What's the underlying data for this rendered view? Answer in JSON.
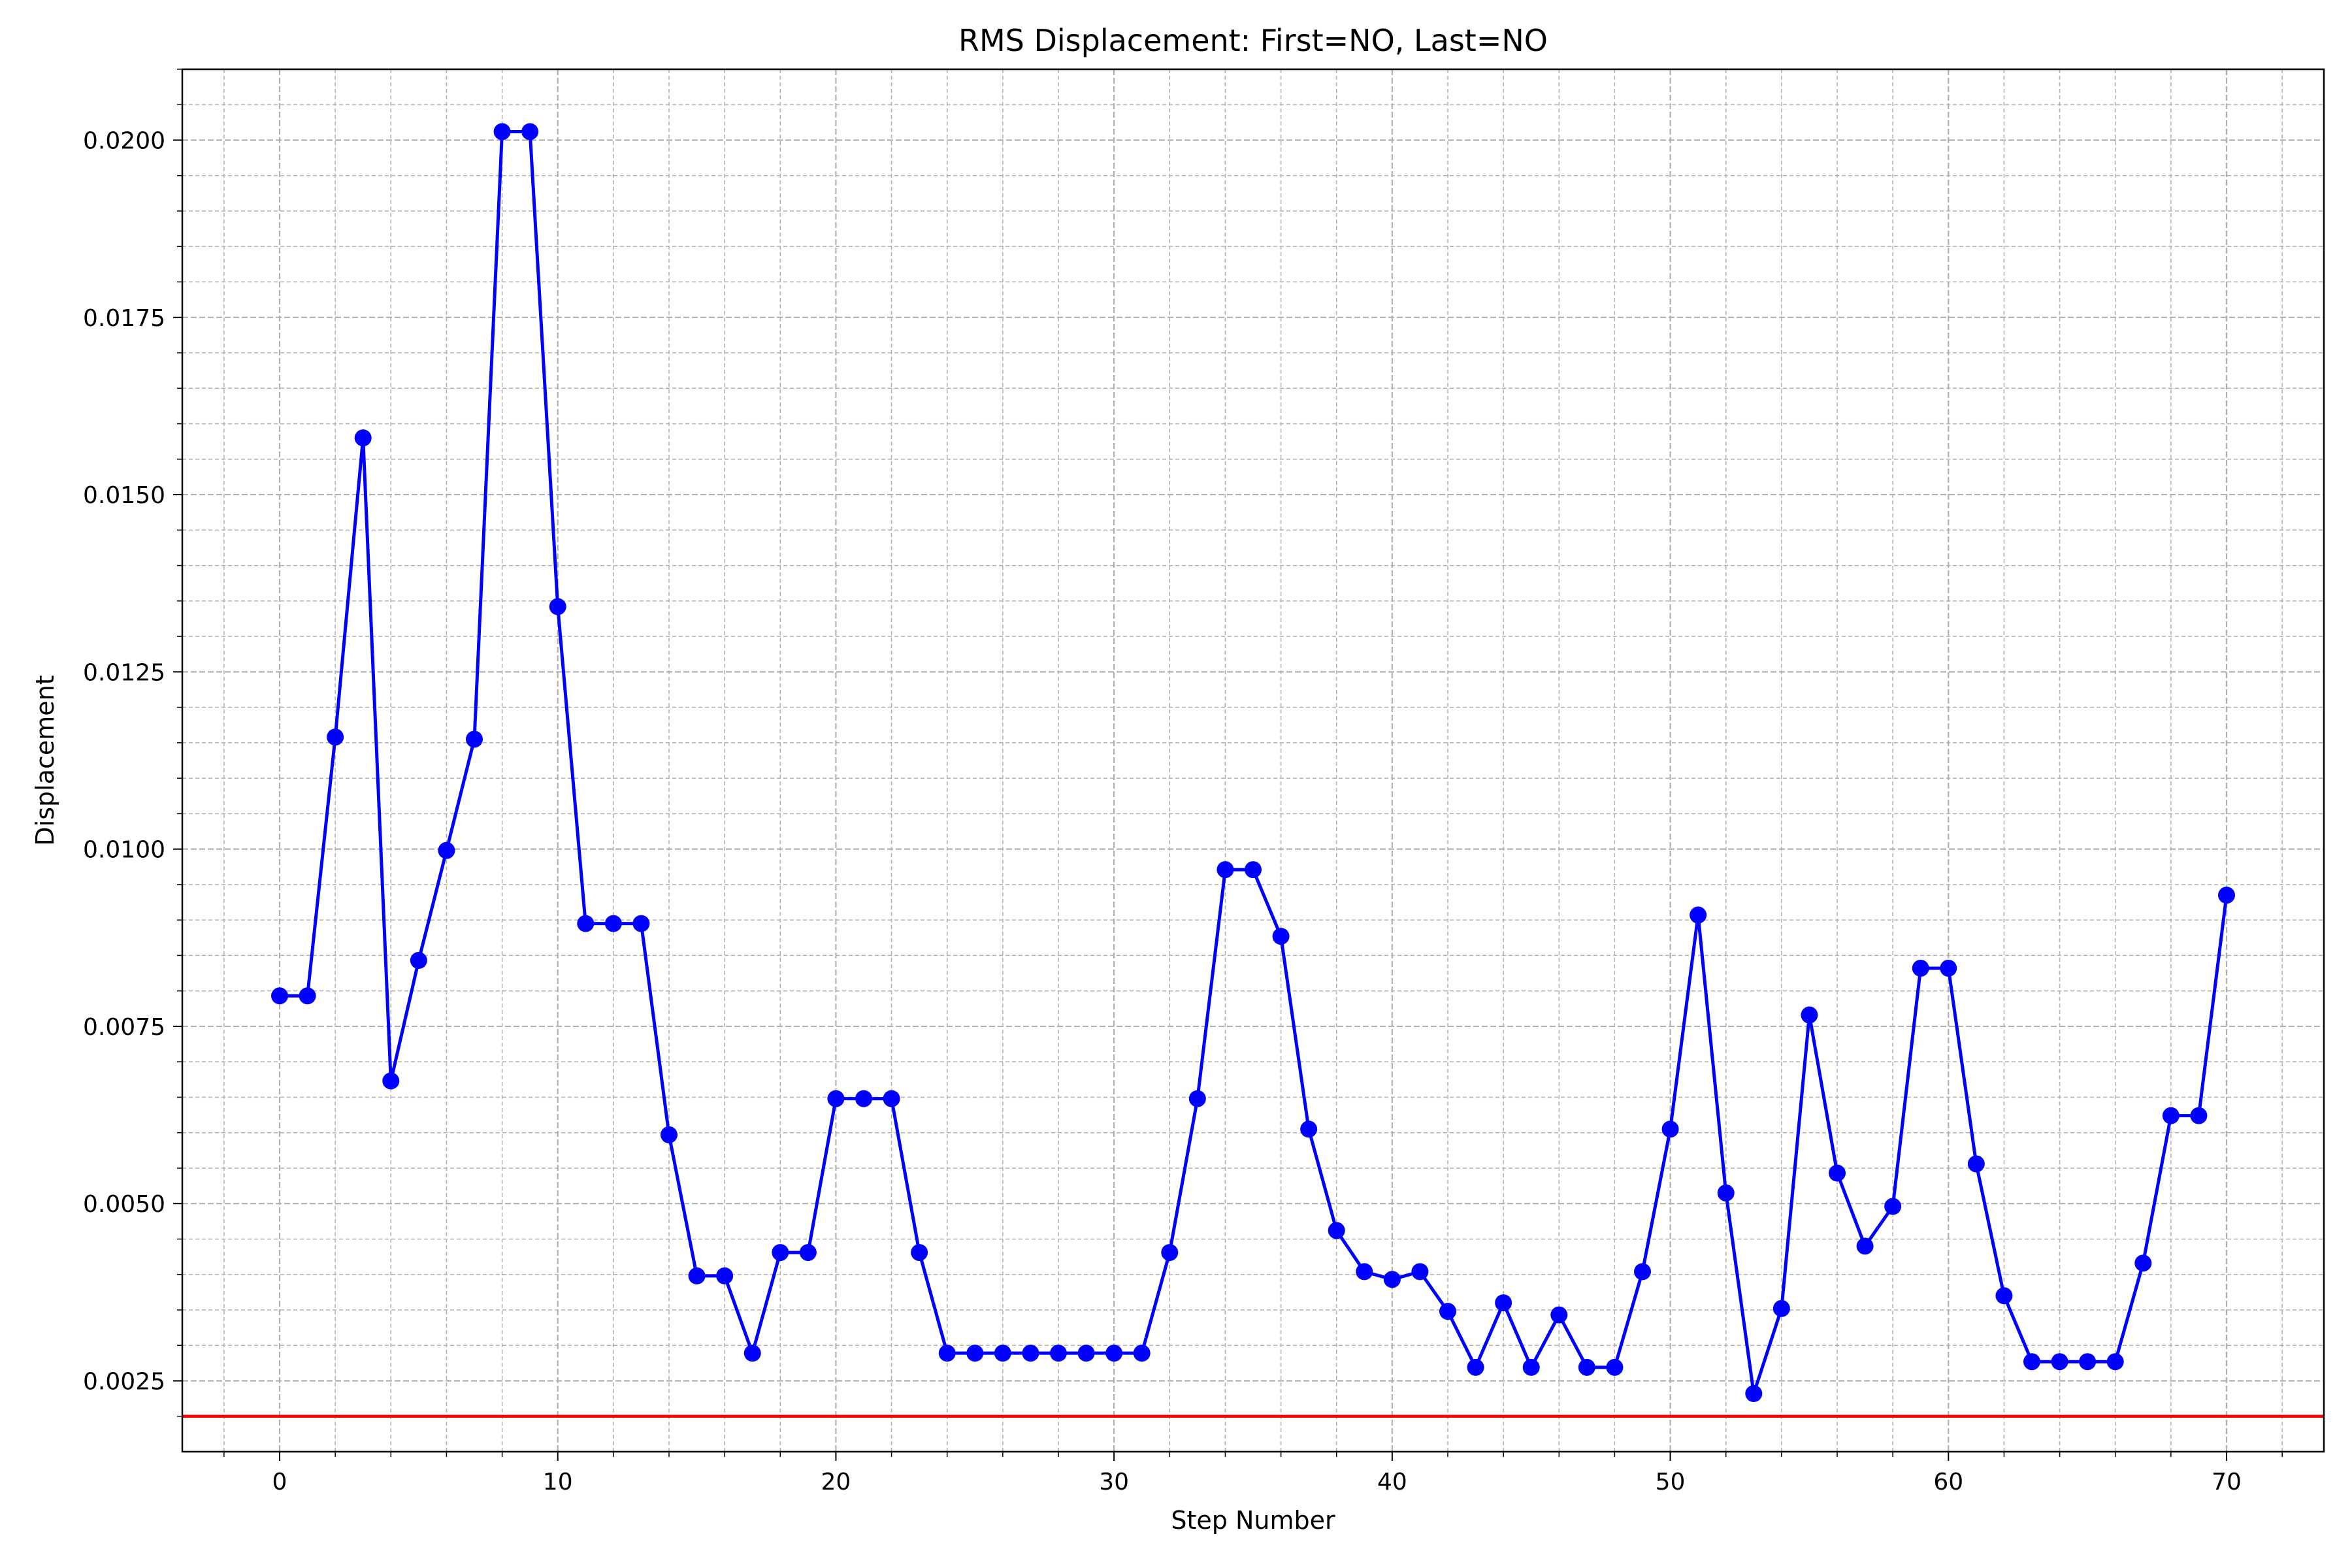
{
  "chart_data": {
    "type": "line",
    "title": "RMS Displacement: First=NO, Last=NO",
    "xlabel": "Step Number",
    "ylabel": "Displacement",
    "xlim": [
      -3.5,
      73.5
    ],
    "ylim": [
      0.0015,
      0.021
    ],
    "xticks": [
      0,
      10,
      20,
      30,
      40,
      50,
      60,
      70
    ],
    "xtick_labels": [
      "0",
      "10",
      "20",
      "30",
      "40",
      "50",
      "60",
      "70"
    ],
    "yticks": [
      0.0025,
      0.005,
      0.0075,
      0.01,
      0.0125,
      0.015,
      0.0175,
      0.02
    ],
    "ytick_labels": [
      "0.0025",
      "0.0050",
      "0.0075",
      "0.0100",
      "0.0125",
      "0.0150",
      "0.0175",
      "0.0200"
    ],
    "grid": "on (major and minor, dashed)",
    "series": [
      {
        "color": "#0000ff",
        "marker": "circle",
        "x": [
          0,
          1,
          2,
          3,
          4,
          5,
          6,
          7,
          8,
          9,
          10,
          11,
          12,
          13,
          14,
          15,
          16,
          17,
          18,
          19,
          20,
          21,
          22,
          23,
          24,
          25,
          26,
          27,
          28,
          29,
          30,
          31,
          32,
          33,
          34,
          35,
          36,
          37,
          38,
          39,
          40,
          41,
          42,
          43,
          44,
          45,
          46,
          47,
          48,
          49,
          50,
          51,
          52,
          53,
          54,
          55,
          56,
          57,
          58,
          59,
          60,
          61,
          62,
          63,
          64,
          65,
          66,
          67,
          68,
          69,
          70
        ],
        "values": [
          0.00793,
          0.00793,
          0.01158,
          0.0158,
          0.00673,
          0.00843,
          0.00998,
          0.01155,
          0.02012,
          0.02012,
          0.01342,
          0.00895,
          0.00895,
          0.00895,
          0.00597,
          0.00398,
          0.00398,
          0.00289,
          0.00431,
          0.00431,
          0.00648,
          0.00648,
          0.00648,
          0.00431,
          0.00289,
          0.00289,
          0.00289,
          0.00289,
          0.00289,
          0.00289,
          0.00289,
          0.00289,
          0.00431,
          0.00648,
          0.00971,
          0.00971,
          0.00877,
          0.00605,
          0.00462,
          0.00404,
          0.00393,
          0.00404,
          0.00348,
          0.00269,
          0.0036,
          0.00269,
          0.00343,
          0.00269,
          0.00269,
          0.00404,
          0.00605,
          0.00907,
          0.00515,
          0.00232,
          0.00352,
          0.00766,
          0.00543,
          0.0044,
          0.00496,
          0.00832,
          0.00832,
          0.00556,
          0.0037,
          0.00277,
          0.00277,
          0.00277,
          0.00277,
          0.00416,
          0.00624,
          0.00624,
          0.00935
        ]
      }
    ],
    "reference_lines": [
      {
        "orientation": "horizontal",
        "y": 0.002,
        "color": "#ff0000"
      }
    ]
  }
}
